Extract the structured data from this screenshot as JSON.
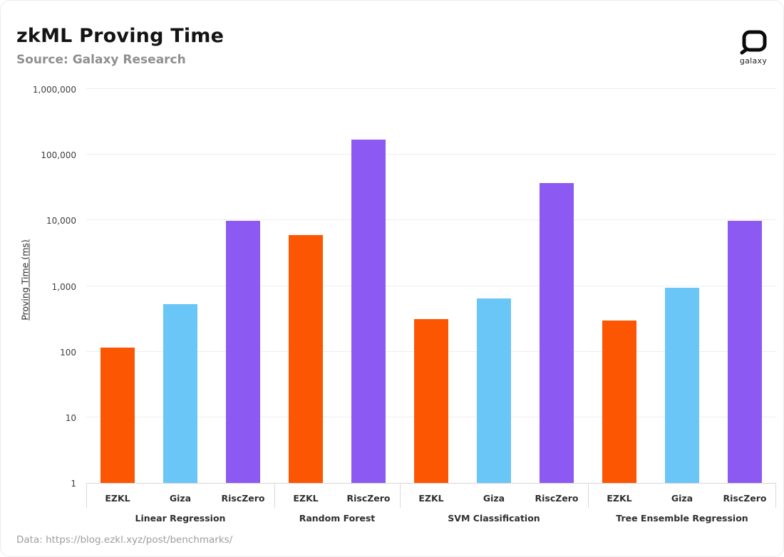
{
  "header": {
    "title": "zkML Proving Time",
    "subtitle": "Source: Galaxy Research",
    "logo_text": "galaxy"
  },
  "footer": {
    "data_source": "Data: https://blog.ezkl.xyz/post/benchmarks/"
  },
  "chart_data": {
    "type": "bar",
    "title": "zkML Proving Time",
    "xlabel": "",
    "ylabel": "Proving Time (ms)",
    "y_scale": "log",
    "ylim": [
      1,
      1000000
    ],
    "y_ticks": [
      "1",
      "10",
      "100",
      "1,000",
      "10,000",
      "100,000",
      "1,000,000"
    ],
    "grid": true,
    "legend": "none",
    "colors": {
      "EZKL": "#FC5603",
      "Giza": "#6AC6F7",
      "RiscZero": "#8C5AF2"
    },
    "groups": [
      {
        "label": "Linear Regression",
        "bars": [
          {
            "name": "EZKL",
            "value": 115
          },
          {
            "name": "Giza",
            "value": 530
          },
          {
            "name": "RiscZero",
            "value": 9800
          }
        ]
      },
      {
        "label": "Random Forest",
        "bars": [
          {
            "name": "EZKL",
            "value": 6000
          },
          {
            "name": "RiscZero",
            "value": 170000
          }
        ]
      },
      {
        "label": "SVM Classification",
        "bars": [
          {
            "name": "EZKL",
            "value": 310
          },
          {
            "name": "Giza",
            "value": 640
          },
          {
            "name": "RiscZero",
            "value": 37000
          }
        ]
      },
      {
        "label": "Tree Ensemble Regression",
        "bars": [
          {
            "name": "EZKL",
            "value": 300
          },
          {
            "name": "Giza",
            "value": 950
          },
          {
            "name": "RiscZero",
            "value": 9800
          }
        ]
      }
    ]
  }
}
